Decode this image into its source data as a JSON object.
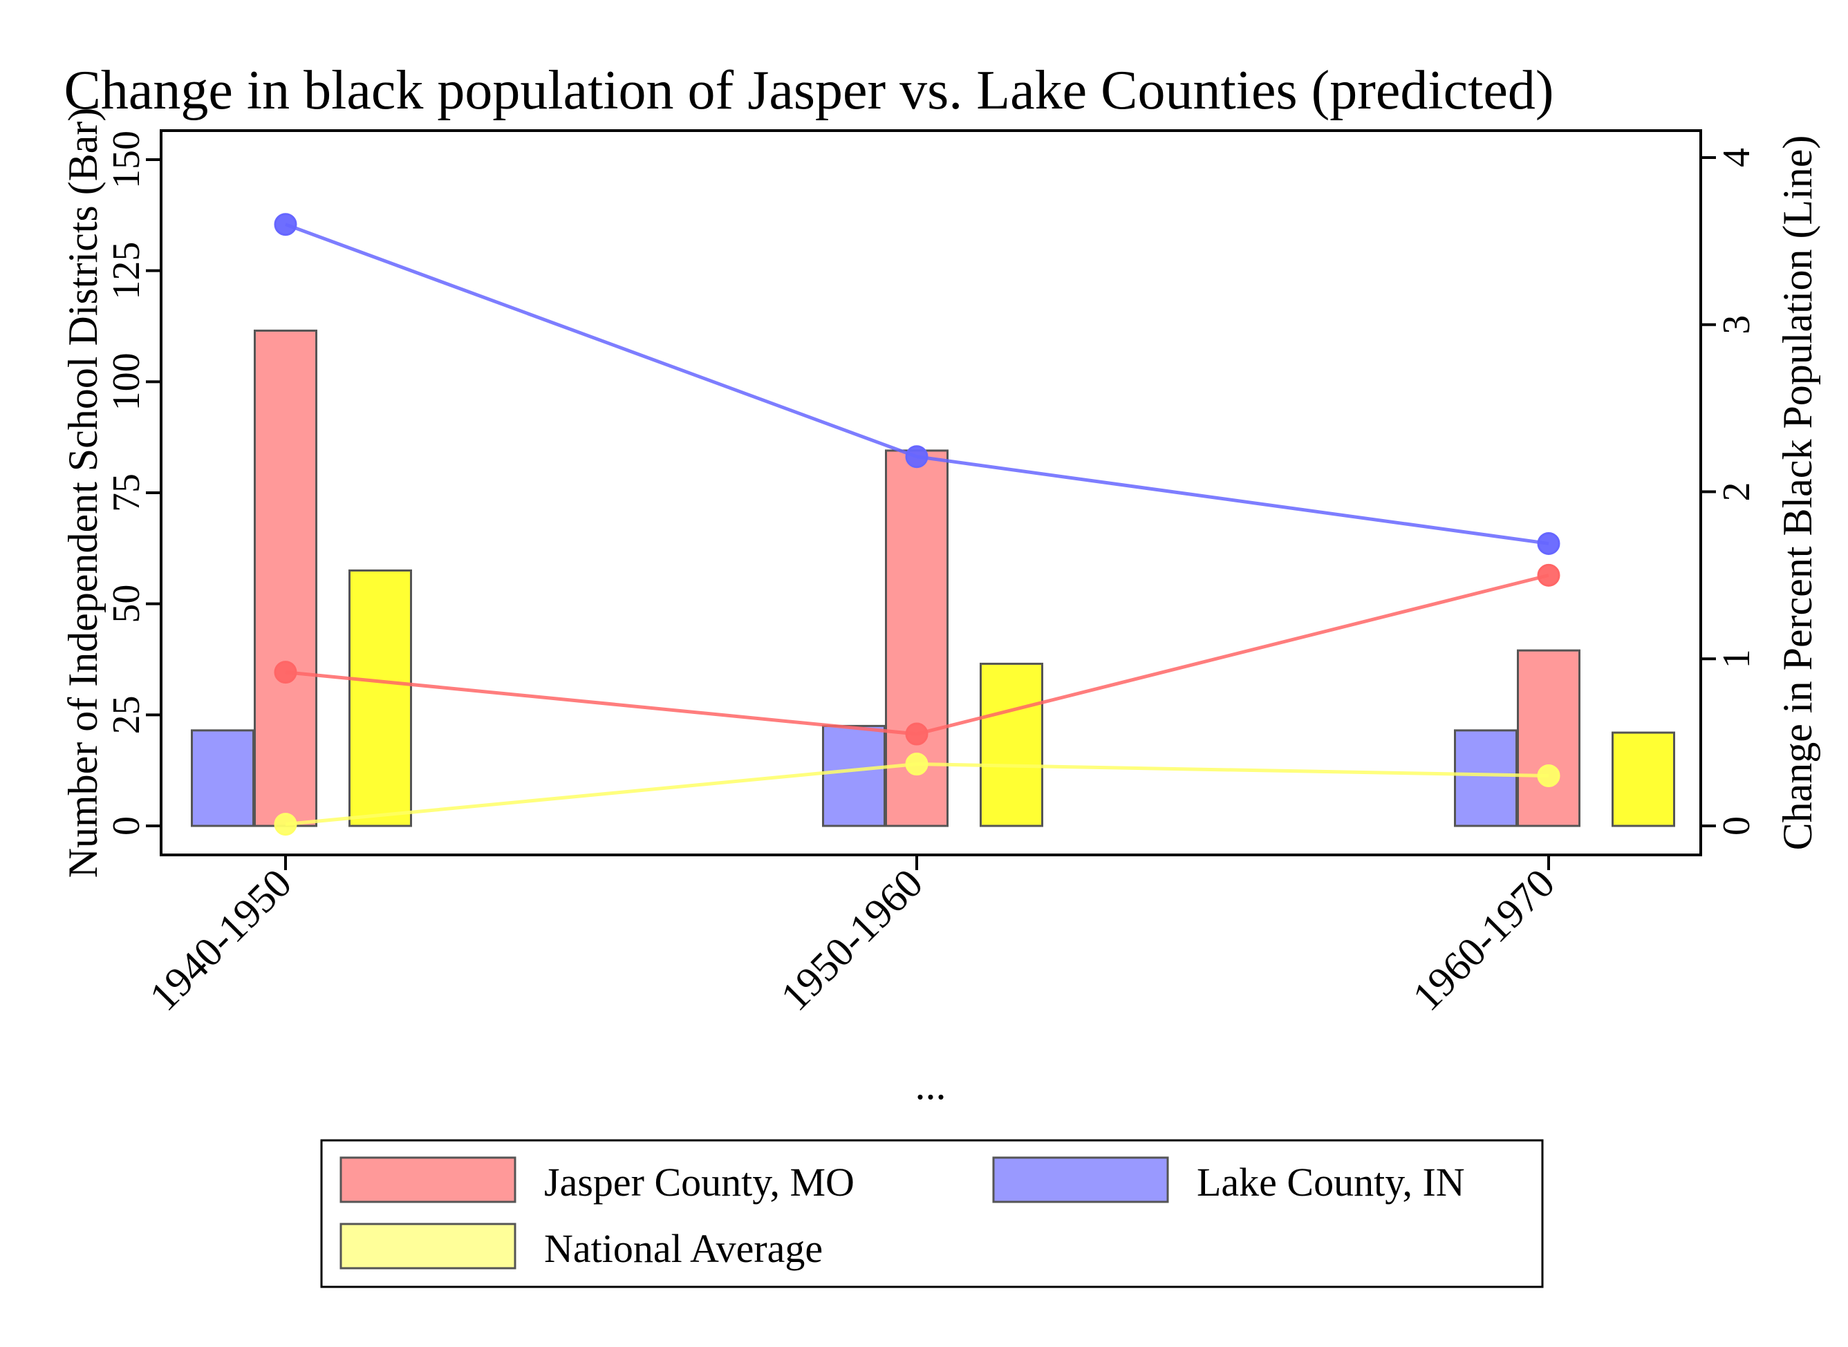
{
  "chart_data": {
    "type": "bar",
    "title": "Change in black population of Jasper vs. Lake Counties (predicted)",
    "xlabel": "...",
    "ylabel_left": "Number of Independent School Districts (Bar)",
    "ylabel_right": "Change in Percent Black Population (Line)",
    "categories": [
      "1940-1950",
      "1950-1960",
      "1960-1970"
    ],
    "ylim_left": [
      -6.8,
      155
    ],
    "yticks_left": [
      "0",
      "25",
      "50",
      "75",
      "100",
      "125",
      "150"
    ],
    "ylim_right": [
      -0.18,
      4.13
    ],
    "yticks_right": [
      "0",
      "1",
      "2",
      "3",
      "4"
    ],
    "legend_position": "bottom",
    "bar_series": [
      {
        "name": "Lake County, IN",
        "color": "#9999ff",
        "values": [
          21.5,
          22.5,
          21.5
        ]
      },
      {
        "name": "Jasper County, MO",
        "color": "#ff9999",
        "values": [
          111.5,
          84.5,
          39.5
        ]
      },
      {
        "name": "National Average",
        "color": "#ffff33",
        "values": [
          57.5,
          36.5,
          21
        ]
      }
    ],
    "line_series": [
      {
        "name": "Lake County, IN",
        "color": "#6666ff",
        "values": [
          3.6,
          2.21,
          1.69
        ]
      },
      {
        "name": "Jasper County, MO",
        "color": "#ff6666",
        "values": [
          0.92,
          0.55,
          1.5
        ]
      },
      {
        "name": "National Average",
        "color": "#ffff66",
        "values": [
          0.01,
          0.37,
          0.3
        ]
      }
    ],
    "legend": [
      {
        "label": "Jasper County, MO",
        "color": "#ff9999"
      },
      {
        "label": "Lake County, IN",
        "color": "#9999ff"
      },
      {
        "label": "National Average",
        "color": "#ffff99"
      }
    ],
    "grid": false
  }
}
